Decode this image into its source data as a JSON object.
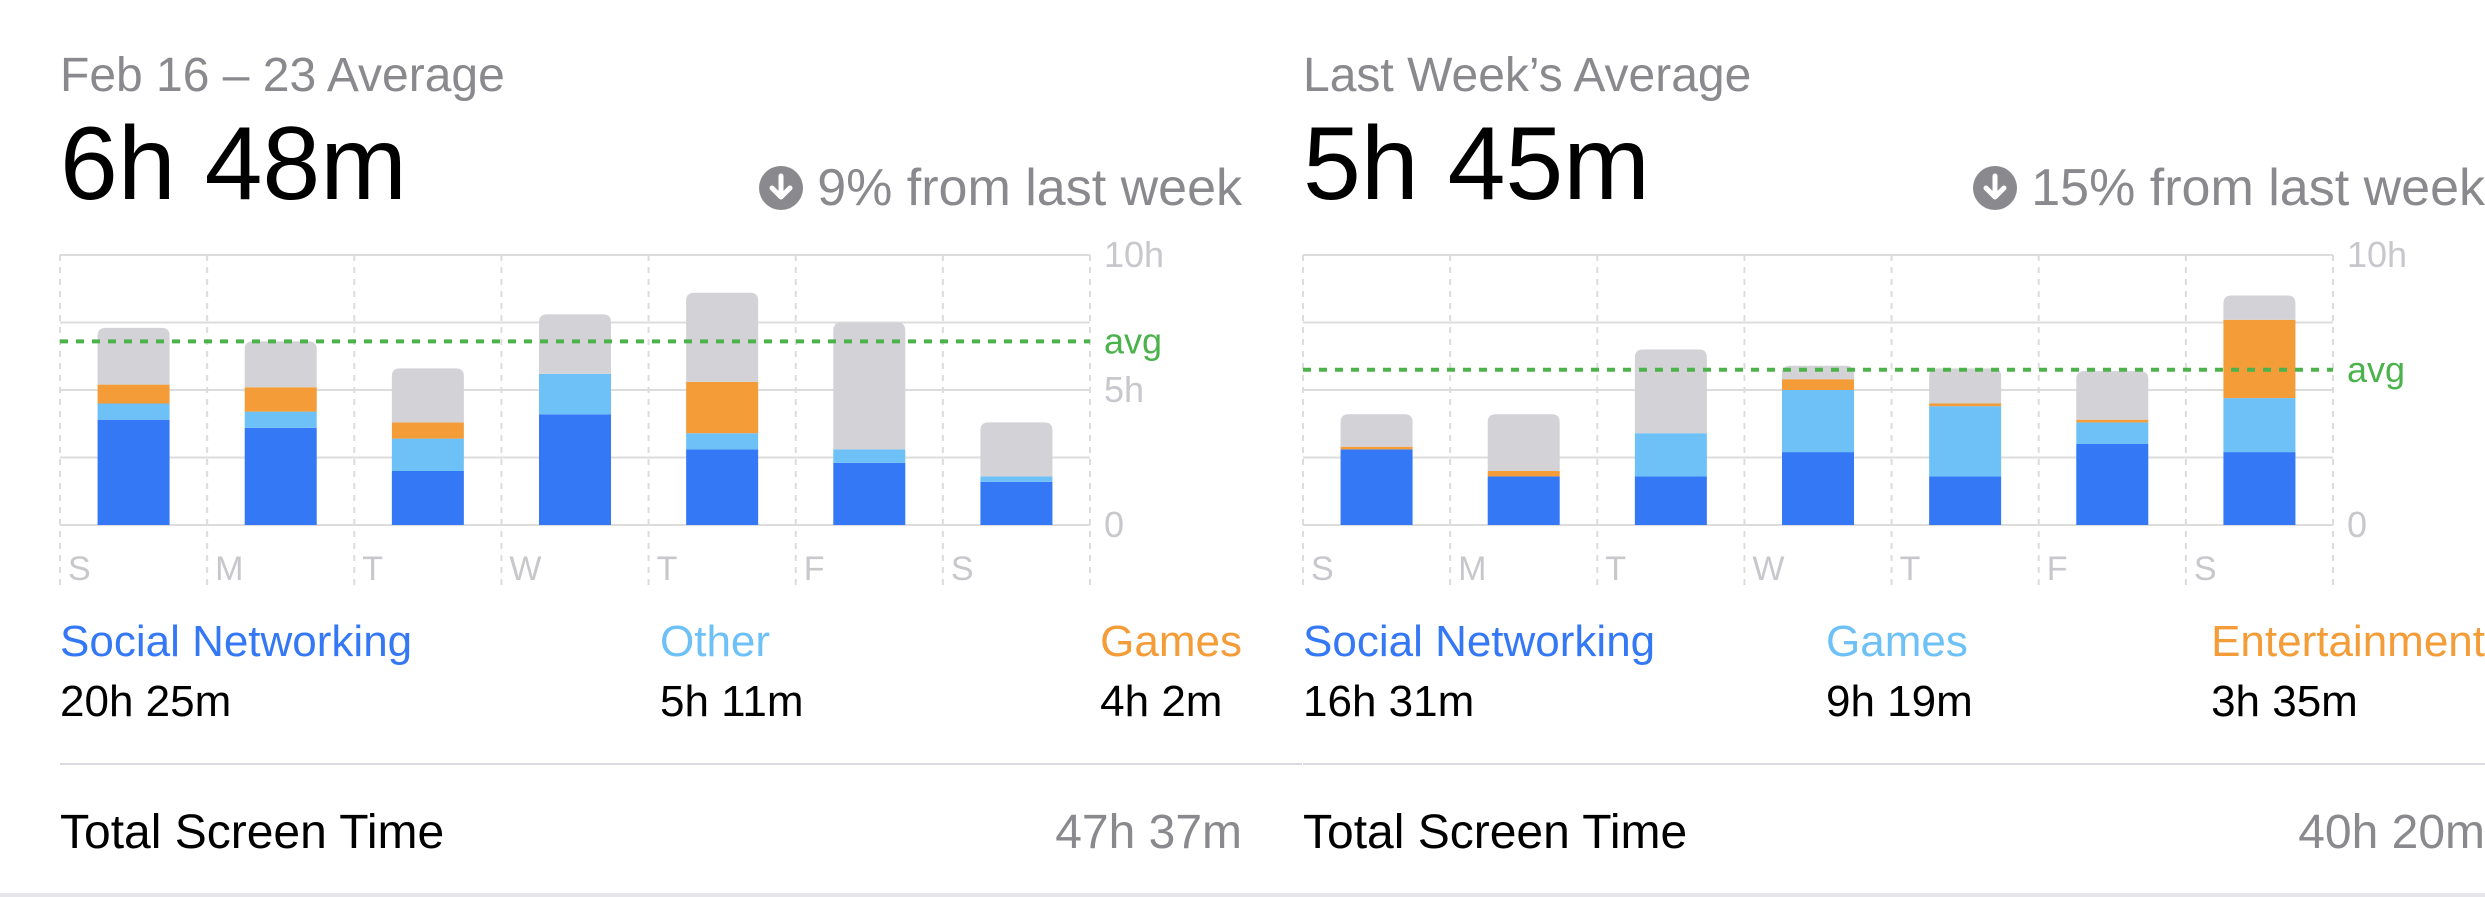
{
  "colors": {
    "social": "#3478f6",
    "other_light": "#6ec1f7",
    "orange": "#f39c38",
    "gray": "#d2d2d7",
    "avg_line": "#4cb34c",
    "grid": "#dcdcdc",
    "muted_text": "#8a8a8e"
  },
  "panels": [
    {
      "range_label": "Feb 16 – 23 Average",
      "average": "6h 48m",
      "change_icon": "arrow-down-circle-icon",
      "change_text": "9% from last week",
      "categories": [
        {
          "name": "Social Networking",
          "time": "20h 25m",
          "color": "#3478f6"
        },
        {
          "name": "Other",
          "time": "5h 11m",
          "color": "#6ec1f7"
        },
        {
          "name": "Games",
          "time": "4h 2m",
          "color": "#f39c38"
        }
      ],
      "total_label": "Total Screen Time",
      "total_value": "47h 37m",
      "chart_data": {
        "type": "bar",
        "stacked": true,
        "categories": [
          "S",
          "M",
          "T",
          "W",
          "T",
          "F",
          "S"
        ],
        "y_ticks": [
          "10h",
          "5h",
          "0"
        ],
        "ylim": [
          0,
          10
        ],
        "avg_label": "avg",
        "avg_value": 6.8,
        "series": [
          {
            "name": "Social Networking",
            "color": "#3478f6",
            "values": [
              3.9,
              3.6,
              2.0,
              4.1,
              2.8,
              2.3,
              1.6
            ]
          },
          {
            "name": "Other",
            "color": "#6ec1f7",
            "values": [
              0.6,
              0.6,
              1.2,
              1.5,
              0.6,
              0.5,
              0.2
            ]
          },
          {
            "name": "Games",
            "color": "#f39c38",
            "values": [
              0.7,
              0.9,
              0.6,
              0.0,
              1.9,
              0.0,
              0.0
            ]
          },
          {
            "name": "",
            "color": "#d2d2d7",
            "values": [
              2.1,
              1.7,
              2.0,
              2.2,
              3.3,
              4.7,
              2.0
            ]
          }
        ]
      }
    },
    {
      "range_label": "Last Week’s Average",
      "average": "5h 45m",
      "change_icon": "arrow-down-circle-icon",
      "change_text": "15% from last week",
      "categories": [
        {
          "name": "Social Networking",
          "time": "16h 31m",
          "color": "#3478f6"
        },
        {
          "name": "Games",
          "time": "9h 19m",
          "color": "#6ec1f7"
        },
        {
          "name": "Entertainment",
          "time": "3h 35m",
          "color": "#f39c38"
        }
      ],
      "total_label": "Total Screen Time",
      "total_value": "40h 20m",
      "chart_data": {
        "type": "bar",
        "stacked": true,
        "categories": [
          "S",
          "M",
          "T",
          "W",
          "T",
          "F",
          "S"
        ],
        "y_ticks": [
          "10h",
          "0"
        ],
        "ylim": [
          0,
          10
        ],
        "avg_label": "avg",
        "avg_value": 5.75,
        "series": [
          {
            "name": "Social Networking",
            "color": "#3478f6",
            "values": [
              2.8,
              1.8,
              1.8,
              2.7,
              1.8,
              3.0,
              2.7
            ]
          },
          {
            "name": "Games",
            "color": "#6ec1f7",
            "values": [
              0.0,
              0.0,
              1.6,
              2.3,
              2.6,
              0.8,
              2.0
            ]
          },
          {
            "name": "Entertainment",
            "color": "#f39c38",
            "values": [
              0.1,
              0.2,
              0.0,
              0.4,
              0.1,
              0.1,
              2.9
            ]
          },
          {
            "name": "",
            "color": "#d2d2d7",
            "values": [
              1.2,
              2.1,
              3.1,
              0.5,
              1.3,
              1.8,
              0.9
            ]
          }
        ]
      }
    }
  ]
}
